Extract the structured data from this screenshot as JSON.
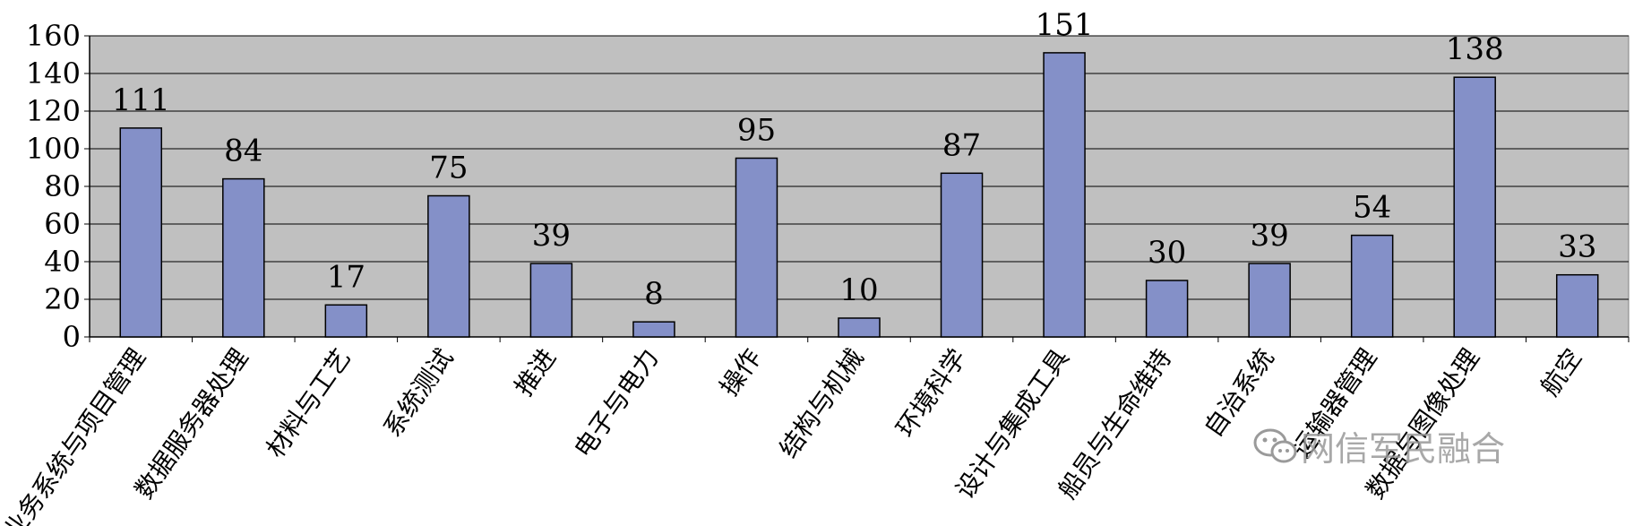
{
  "chart_data": {
    "type": "bar",
    "categories": [
      "业务系统与项目管理",
      "数据服务器处理",
      "材料与工艺",
      "系统测试",
      "推进",
      "电子与电力",
      "操作",
      "结构与机械",
      "环境科学",
      "设计与集成工具",
      "船员与生命维持",
      "自治系统",
      "运输器管理",
      "数据与图像处理",
      "航空"
    ],
    "values": [
      111,
      84,
      17,
      75,
      39,
      8,
      95,
      10,
      87,
      151,
      30,
      39,
      54,
      138,
      33
    ],
    "title": "",
    "xlabel": "",
    "ylabel": "",
    "ylim": [
      0,
      160
    ],
    "yticks": [
      0,
      20,
      40,
      60,
      80,
      100,
      120,
      140,
      160
    ],
    "grid": true,
    "legend": "none",
    "colors": {
      "plot_background": "#c0c0c0",
      "bar_fill": "#8490c8",
      "bar_stroke": "#000000",
      "gridline": "#000000"
    }
  },
  "watermark": {
    "text": "网信军民融合",
    "icon": "wechat-icon"
  }
}
